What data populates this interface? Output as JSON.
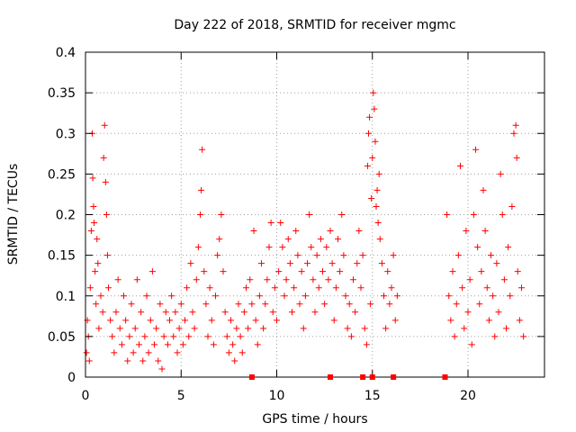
{
  "chart_data": {
    "type": "scatter",
    "title": "Day 222 of 2018, SRMTID for receiver mgmc",
    "xlabel": "GPS time / hours",
    "ylabel": "SRMTID / TECUs",
    "xlim": [
      0,
      24
    ],
    "ylim": [
      0,
      0.4
    ],
    "xticks": [
      0,
      5,
      10,
      15,
      20
    ],
    "yticks": [
      0,
      0.05,
      0.1,
      0.15,
      0.2,
      0.25,
      0.3,
      0.35,
      0.4
    ],
    "ytick_labels": [
      "0",
      "0.05",
      "0.1",
      "0.15",
      "0.2",
      "0.25",
      "0.3",
      "0.35",
      "0.4"
    ],
    "grid": true,
    "marker": "+",
    "color": "#ff0000",
    "gap_markers_x": [
      8.7,
      12.8,
      14.5,
      15.0,
      16.1,
      18.8
    ],
    "series": [
      {
        "name": "SRMTID",
        "points": [
          [
            0.05,
            0.03
          ],
          [
            0.1,
            0.07
          ],
          [
            0.15,
            0.05
          ],
          [
            0.2,
            0.02
          ],
          [
            0.25,
            0.11
          ],
          [
            0.3,
            0.18
          ],
          [
            0.35,
            0.3
          ],
          [
            0.38,
            0.245
          ],
          [
            0.42,
            0.21
          ],
          [
            0.45,
            0.19
          ],
          [
            0.5,
            0.13
          ],
          [
            0.55,
            0.09
          ],
          [
            0.6,
            0.17
          ],
          [
            0.65,
            0.14
          ],
          [
            0.7,
            0.06
          ],
          [
            0.8,
            0.1
          ],
          [
            0.9,
            0.08
          ],
          [
            0.95,
            0.27
          ],
          [
            1.0,
            0.31
          ],
          [
            1.05,
            0.24
          ],
          [
            1.1,
            0.2
          ],
          [
            1.15,
            0.15
          ],
          [
            1.2,
            0.11
          ],
          [
            1.3,
            0.07
          ],
          [
            1.4,
            0.05
          ],
          [
            1.5,
            0.03
          ],
          [
            1.6,
            0.08
          ],
          [
            1.7,
            0.12
          ],
          [
            1.8,
            0.06
          ],
          [
            1.9,
            0.04
          ],
          [
            2.0,
            0.1
          ],
          [
            2.1,
            0.07
          ],
          [
            2.2,
            0.02
          ],
          [
            2.3,
            0.05
          ],
          [
            2.4,
            0.09
          ],
          [
            2.5,
            0.03
          ],
          [
            2.6,
            0.06
          ],
          [
            2.7,
            0.12
          ],
          [
            2.8,
            0.04
          ],
          [
            2.9,
            0.08
          ],
          [
            3.0,
            0.02
          ],
          [
            3.1,
            0.05
          ],
          [
            3.2,
            0.1
          ],
          [
            3.3,
            0.03
          ],
          [
            3.4,
            0.07
          ],
          [
            3.5,
            0.13
          ],
          [
            3.6,
            0.04
          ],
          [
            3.7,
            0.06
          ],
          [
            3.8,
            0.02
          ],
          [
            3.9,
            0.09
          ],
          [
            4.0,
            0.01
          ],
          [
            4.1,
            0.05
          ],
          [
            4.2,
            0.08
          ],
          [
            4.3,
            0.04
          ],
          [
            4.4,
            0.07
          ],
          [
            4.5,
            0.1
          ],
          [
            4.6,
            0.05
          ],
          [
            4.7,
            0.08
          ],
          [
            4.8,
            0.03
          ],
          [
            4.9,
            0.06
          ],
          [
            5.0,
            0.09
          ],
          [
            5.1,
            0.04
          ],
          [
            5.2,
            0.07
          ],
          [
            5.3,
            0.11
          ],
          [
            5.4,
            0.05
          ],
          [
            5.5,
            0.14
          ],
          [
            5.6,
            0.08
          ],
          [
            5.7,
            0.06
          ],
          [
            5.8,
            0.12
          ],
          [
            5.9,
            0.16
          ],
          [
            6.0,
            0.2
          ],
          [
            6.05,
            0.23
          ],
          [
            6.1,
            0.28
          ],
          [
            6.2,
            0.13
          ],
          [
            6.3,
            0.09
          ],
          [
            6.4,
            0.05
          ],
          [
            6.5,
            0.11
          ],
          [
            6.6,
            0.07
          ],
          [
            6.7,
            0.04
          ],
          [
            6.8,
            0.1
          ],
          [
            6.9,
            0.15
          ],
          [
            7.0,
            0.17
          ],
          [
            7.1,
            0.2
          ],
          [
            7.2,
            0.13
          ],
          [
            7.3,
            0.08
          ],
          [
            7.4,
            0.05
          ],
          [
            7.5,
            0.03
          ],
          [
            7.6,
            0.07
          ],
          [
            7.7,
            0.04
          ],
          [
            7.8,
            0.02
          ],
          [
            7.9,
            0.06
          ],
          [
            8.0,
            0.09
          ],
          [
            8.1,
            0.05
          ],
          [
            8.2,
            0.03
          ],
          [
            8.3,
            0.08
          ],
          [
            8.4,
            0.11
          ],
          [
            8.5,
            0.06
          ],
          [
            8.6,
            0.12
          ],
          [
            8.7,
            0.09
          ],
          [
            8.8,
            0.18
          ],
          [
            8.9,
            0.07
          ],
          [
            9.0,
            0.04
          ],
          [
            9.1,
            0.1
          ],
          [
            9.2,
            0.14
          ],
          [
            9.3,
            0.06
          ],
          [
            9.4,
            0.09
          ],
          [
            9.5,
            0.12
          ],
          [
            9.6,
            0.16
          ],
          [
            9.7,
            0.19
          ],
          [
            9.8,
            0.08
          ],
          [
            9.9,
            0.11
          ],
          [
            10.0,
            0.07
          ],
          [
            10.1,
            0.13
          ],
          [
            10.2,
            0.19
          ],
          [
            10.3,
            0.16
          ],
          [
            10.4,
            0.1
          ],
          [
            10.5,
            0.12
          ],
          [
            10.6,
            0.17
          ],
          [
            10.7,
            0.14
          ],
          [
            10.8,
            0.08
          ],
          [
            10.9,
            0.11
          ],
          [
            11.0,
            0.18
          ],
          [
            11.1,
            0.15
          ],
          [
            11.2,
            0.09
          ],
          [
            11.3,
            0.13
          ],
          [
            11.4,
            0.06
          ],
          [
            11.5,
            0.1
          ],
          [
            11.6,
            0.14
          ],
          [
            11.7,
            0.2
          ],
          [
            11.8,
            0.16
          ],
          [
            11.9,
            0.12
          ],
          [
            12.0,
            0.08
          ],
          [
            12.1,
            0.15
          ],
          [
            12.2,
            0.11
          ],
          [
            12.3,
            0.17
          ],
          [
            12.4,
            0.13
          ],
          [
            12.5,
            0.09
          ],
          [
            12.6,
            0.16
          ],
          [
            12.7,
            0.12
          ],
          [
            12.8,
            0.18
          ],
          [
            12.9,
            0.14
          ],
          [
            13.0,
            0.07
          ],
          [
            13.1,
            0.11
          ],
          [
            13.2,
            0.17
          ],
          [
            13.3,
            0.13
          ],
          [
            13.4,
            0.2
          ],
          [
            13.5,
            0.15
          ],
          [
            13.6,
            0.1
          ],
          [
            13.7,
            0.06
          ],
          [
            13.8,
            0.09
          ],
          [
            13.9,
            0.05
          ],
          [
            14.0,
            0.12
          ],
          [
            14.1,
            0.08
          ],
          [
            14.2,
            0.14
          ],
          [
            14.3,
            0.18
          ],
          [
            14.4,
            0.11
          ],
          [
            14.5,
            0.15
          ],
          [
            14.6,
            0.06
          ],
          [
            14.7,
            0.04
          ],
          [
            14.75,
            0.26
          ],
          [
            14.8,
            0.3
          ],
          [
            14.85,
            0.32
          ],
          [
            14.9,
            0.09
          ],
          [
            14.95,
            0.22
          ],
          [
            15.0,
            0.27
          ],
          [
            15.05,
            0.35
          ],
          [
            15.1,
            0.33
          ],
          [
            15.15,
            0.29
          ],
          [
            15.2,
            0.21
          ],
          [
            15.25,
            0.23
          ],
          [
            15.3,
            0.19
          ],
          [
            15.35,
            0.25
          ],
          [
            15.4,
            0.17
          ],
          [
            15.5,
            0.14
          ],
          [
            15.6,
            0.1
          ],
          [
            15.7,
            0.06
          ],
          [
            15.8,
            0.13
          ],
          [
            15.9,
            0.09
          ],
          [
            16.0,
            0.11
          ],
          [
            16.1,
            0.15
          ],
          [
            16.2,
            0.07
          ],
          [
            16.3,
            0.1
          ],
          [
            18.9,
            0.2
          ],
          [
            19.0,
            0.1
          ],
          [
            19.1,
            0.07
          ],
          [
            19.2,
            0.13
          ],
          [
            19.3,
            0.05
          ],
          [
            19.4,
            0.09
          ],
          [
            19.5,
            0.15
          ],
          [
            19.6,
            0.26
          ],
          [
            19.7,
            0.11
          ],
          [
            19.8,
            0.06
          ],
          [
            19.9,
            0.18
          ],
          [
            20.0,
            0.08
          ],
          [
            20.1,
            0.12
          ],
          [
            20.2,
            0.04
          ],
          [
            20.3,
            0.2
          ],
          [
            20.4,
            0.28
          ],
          [
            20.5,
            0.16
          ],
          [
            20.6,
            0.09
          ],
          [
            20.7,
            0.13
          ],
          [
            20.8,
            0.23
          ],
          [
            20.9,
            0.18
          ],
          [
            21.0,
            0.11
          ],
          [
            21.1,
            0.07
          ],
          [
            21.2,
            0.15
          ],
          [
            21.3,
            0.1
          ],
          [
            21.4,
            0.05
          ],
          [
            21.5,
            0.14
          ],
          [
            21.6,
            0.08
          ],
          [
            21.7,
            0.25
          ],
          [
            21.8,
            0.2
          ],
          [
            21.9,
            0.12
          ],
          [
            22.0,
            0.06
          ],
          [
            22.1,
            0.16
          ],
          [
            22.2,
            0.1
          ],
          [
            22.3,
            0.21
          ],
          [
            22.4,
            0.3
          ],
          [
            22.5,
            0.31
          ],
          [
            22.55,
            0.27
          ],
          [
            22.6,
            0.13
          ],
          [
            22.7,
            0.07
          ],
          [
            22.8,
            0.11
          ],
          [
            22.9,
            0.05
          ]
        ]
      }
    ]
  }
}
